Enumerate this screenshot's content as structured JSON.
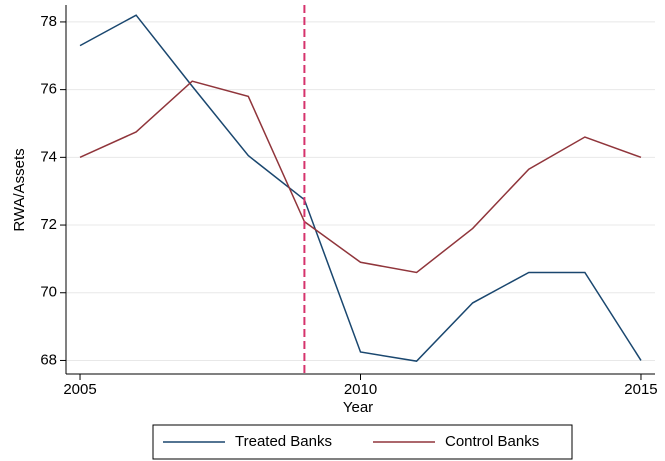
{
  "chart_data": {
    "type": "line",
    "x_label": "Year",
    "y_label": "RWA/Assets",
    "x": [
      2005,
      2006,
      2007,
      2008,
      2009,
      2010,
      2011,
      2012,
      2013,
      2014,
      2015
    ],
    "series": [
      {
        "name": "Treated Banks",
        "color": "#1a476f",
        "values": [
          77.3,
          78.2,
          76.1,
          74.05,
          72.75,
          68.25,
          67.98,
          69.7,
          70.6,
          70.6,
          68.0
        ]
      },
      {
        "name": "Control Banks",
        "color": "#90353b",
        "values": [
          74.0,
          74.75,
          76.25,
          75.8,
          72.1,
          70.9,
          70.6,
          71.9,
          73.65,
          74.6,
          74.0
        ]
      }
    ],
    "xlim": [
      2004.75,
      2015.25
    ],
    "xticks": [
      2005,
      2010,
      2015
    ],
    "ylim": [
      67.6,
      78.5
    ],
    "yticks": [
      68,
      70,
      72,
      74,
      76,
      78
    ],
    "grid": true,
    "legend_position": "bottom",
    "reference_line": {
      "x": 2009,
      "color": "#d6336c"
    }
  }
}
